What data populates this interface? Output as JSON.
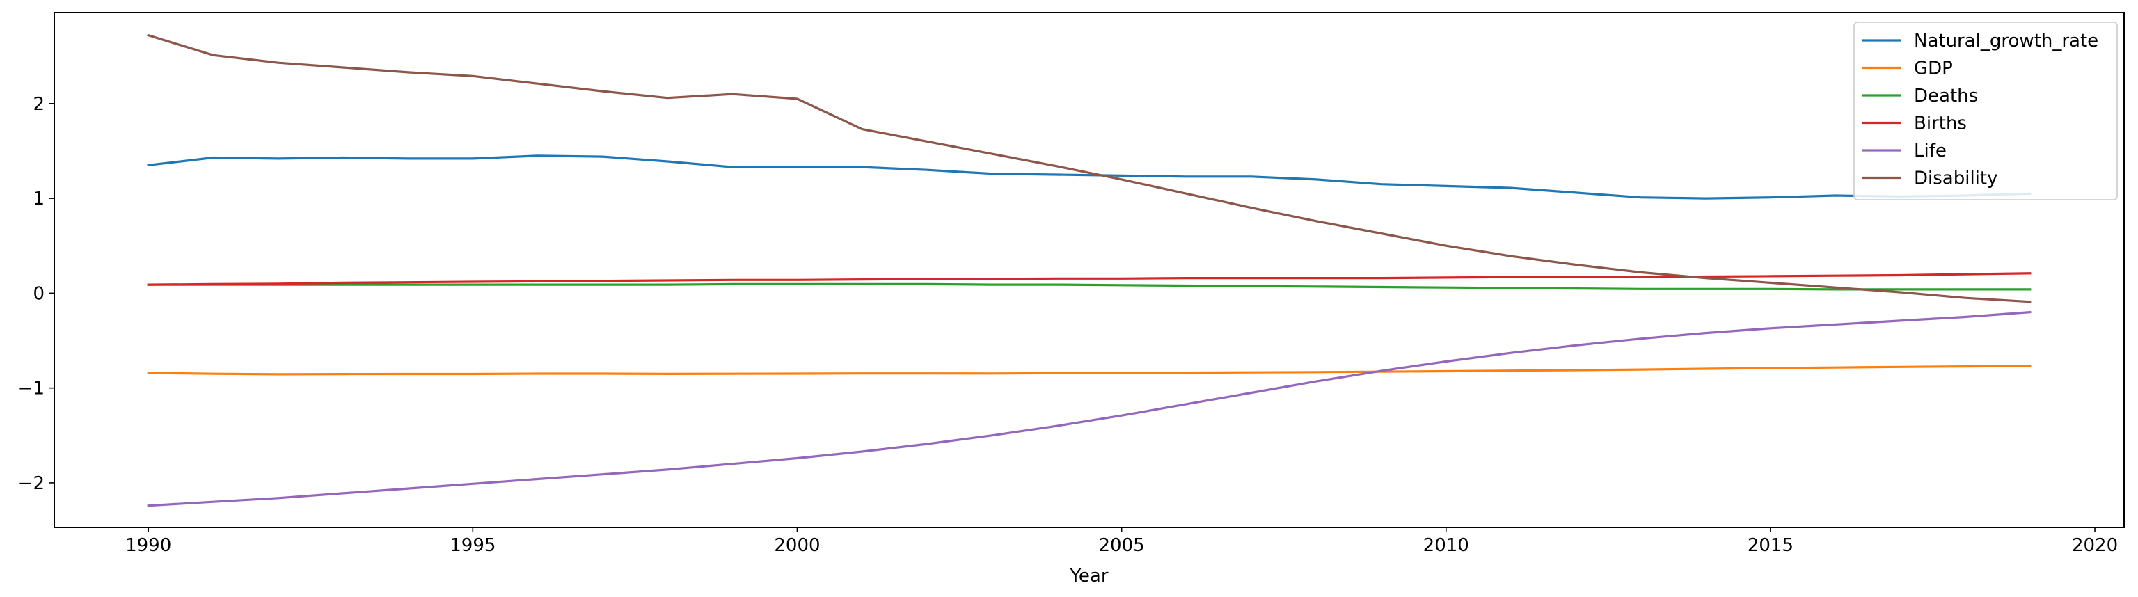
{
  "chart_data": {
    "type": "line",
    "title": "",
    "xlabel": "Year",
    "ylabel": "",
    "xlim": [
      1988.55,
      2020.45
    ],
    "ylim": [
      -2.47,
      2.96
    ],
    "xticks": [
      1990,
      1995,
      2000,
      2005,
      2010,
      2015,
      2020
    ],
    "yticks": [
      -2,
      -1,
      0,
      1,
      2
    ],
    "ytick_labels": [
      "−2",
      "−1",
      "0",
      "1",
      "2"
    ],
    "grid": false,
    "legend_position": "top-right",
    "x": [
      1990,
      1991,
      1992,
      1993,
      1994,
      1995,
      1996,
      1997,
      1998,
      1999,
      2000,
      2001,
      2002,
      2003,
      2004,
      2005,
      2006,
      2007,
      2008,
      2009,
      2010,
      2011,
      2012,
      2013,
      2014,
      2015,
      2016,
      2017,
      2018,
      2019
    ],
    "series": [
      {
        "name": "Natural_growth_rate",
        "color": "#1f77b4",
        "values": [
          1.35,
          1.43,
          1.42,
          1.43,
          1.42,
          1.42,
          1.45,
          1.44,
          1.39,
          1.33,
          1.33,
          1.33,
          1.3,
          1.26,
          1.25,
          1.24,
          1.23,
          1.23,
          1.2,
          1.15,
          1.13,
          1.11,
          1.06,
          1.01,
          1.0,
          1.01,
          1.03,
          1.02,
          1.03,
          1.05
        ]
      },
      {
        "name": "GDP",
        "color": "#ff7f0e",
        "values": [
          -0.84,
          -0.85,
          -0.855,
          -0.853,
          -0.852,
          -0.852,
          -0.848,
          -0.848,
          -0.851,
          -0.85,
          -0.848,
          -0.846,
          -0.846,
          -0.847,
          -0.843,
          -0.84,
          -0.838,
          -0.835,
          -0.832,
          -0.828,
          -0.823,
          -0.817,
          -0.812,
          -0.805,
          -0.797,
          -0.79,
          -0.784,
          -0.777,
          -0.772,
          -0.767
        ]
      },
      {
        "name": "Deaths",
        "color": "#2ca02c",
        "values": [
          0.09,
          0.09,
          0.09,
          0.09,
          0.09,
          0.09,
          0.09,
          0.09,
          0.09,
          0.095,
          0.095,
          0.095,
          0.095,
          0.09,
          0.09,
          0.085,
          0.08,
          0.075,
          0.07,
          0.065,
          0.06,
          0.055,
          0.05,
          0.045,
          0.045,
          0.045,
          0.04,
          0.04,
          0.04,
          0.04
        ]
      },
      {
        "name": "Births",
        "color": "#d62728",
        "values": [
          0.09,
          0.095,
          0.1,
          0.11,
          0.115,
          0.12,
          0.125,
          0.13,
          0.135,
          0.14,
          0.14,
          0.145,
          0.15,
          0.15,
          0.155,
          0.155,
          0.16,
          0.16,
          0.16,
          0.16,
          0.165,
          0.17,
          0.17,
          0.17,
          0.175,
          0.18,
          0.185,
          0.19,
          0.2,
          0.21
        ]
      },
      {
        "name": "Life",
        "color": "#9467bd",
        "values": [
          -2.24,
          -2.2,
          -2.16,
          -2.11,
          -2.06,
          -2.01,
          -1.96,
          -1.91,
          -1.86,
          -1.8,
          -1.74,
          -1.67,
          -1.59,
          -1.5,
          -1.4,
          -1.29,
          -1.17,
          -1.05,
          -0.93,
          -0.82,
          -0.72,
          -0.63,
          -0.55,
          -0.48,
          -0.42,
          -0.37,
          -0.33,
          -0.29,
          -0.25,
          -0.2
        ]
      },
      {
        "name": "Disability",
        "color": "#8c564b",
        "values": [
          2.72,
          2.51,
          2.43,
          2.38,
          2.33,
          2.29,
          2.21,
          2.13,
          2.06,
          2.1,
          2.05,
          1.73,
          1.6,
          1.47,
          1.34,
          1.2,
          1.05,
          0.9,
          0.76,
          0.63,
          0.5,
          0.39,
          0.3,
          0.22,
          0.16,
          0.11,
          0.06,
          0.01,
          -0.05,
          -0.09
        ]
      }
    ]
  }
}
